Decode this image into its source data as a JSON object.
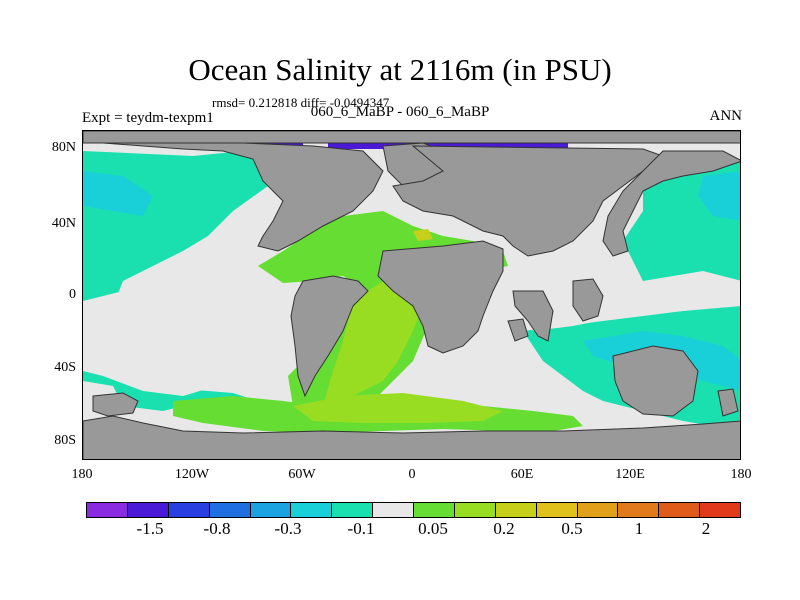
{
  "title": "Ocean Salinity at 2116m (in PSU)",
  "stats": "rmsd= 0.212818 diff= -0.0494347",
  "experiment": "Expt = teydm-texpm1",
  "comparison": "060_6_MaBP - 060_6_MaBP",
  "season": "ANN",
  "map": {
    "land_color": "#999999",
    "ocean_neutral_color": "#e8e8e8",
    "lat_ticks": [
      "80N",
      "40N",
      "0",
      "40S",
      "80S"
    ],
    "lon_ticks": [
      "180",
      "120W",
      "60W",
      "0",
      "60E",
      "120E",
      "180"
    ]
  },
  "colorbar": {
    "colors": [
      "#8a2be2",
      "#4b1ad6",
      "#2a3fe0",
      "#1f6fe0",
      "#1aa3e0",
      "#1ad0d8",
      "#1ae0b0",
      "#e8e8e8",
      "#66dd33",
      "#99dd22",
      "#c6d01a",
      "#e0c01a",
      "#e0a01a",
      "#e07a1a",
      "#e05a1a",
      "#e03a1a"
    ],
    "labels": [
      "-1.5",
      "-0.8",
      "-0.3",
      "-0.1",
      "0.05",
      "0.2",
      "0.5",
      "1",
      "2"
    ]
  }
}
